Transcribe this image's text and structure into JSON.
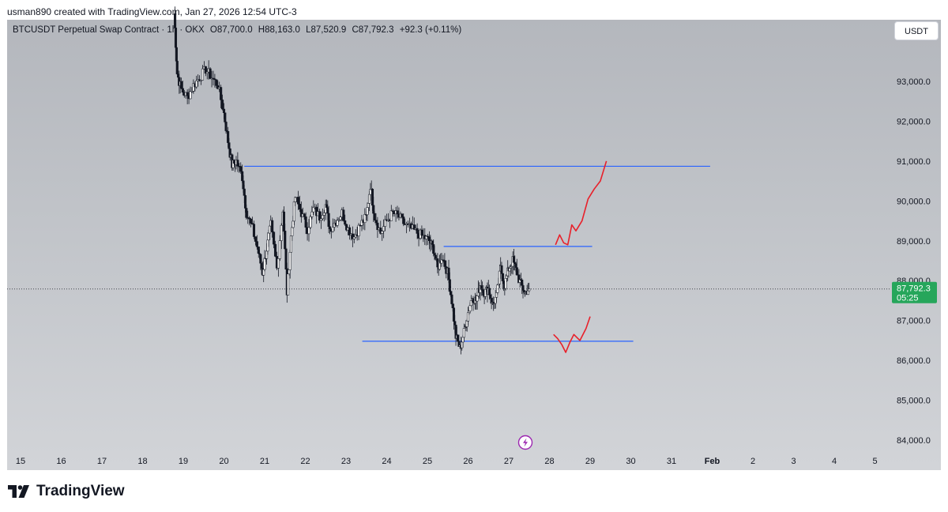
{
  "header": {
    "author_line": "usman890 created with TradingView.com, Jan 27, 2026 12:54 UTC-3"
  },
  "symbol": {
    "name": "BTCUSDT Perpetual Swap Contract · 1h · OKX",
    "open": "O87,700.0",
    "high": "H88,163.0",
    "low": "L87,520.9",
    "close": "C87,792.3",
    "change": "+92.3 (+0.11%)"
  },
  "currency_button": "USDT",
  "last_price": {
    "price": "87,792.3",
    "countdown": "05:25",
    "color": "#26a65b"
  },
  "flash_icon": "lightning-icon",
  "footer": {
    "brand": "TradingView"
  },
  "colors": {
    "candles": "#131722",
    "levels": "#2962ff",
    "projection": "#e8202a"
  },
  "chart_data": {
    "type": "candlestick",
    "title": "",
    "ylim": [
      83600,
      94800
    ],
    "y_ticks": [
      84000,
      85000,
      86000,
      87000,
      88000,
      89000,
      90000,
      91000,
      92000,
      93000
    ],
    "y_tick_labels": [
      "84,000.0",
      "85,000.0",
      "86,000.0",
      "87,000.0",
      "88,000.0",
      "89,000.0",
      "90,000.0",
      "91,000.0",
      "92,000.0",
      "93,000.0"
    ],
    "x_axis": [
      "15",
      "16",
      "17",
      "18",
      "19",
      "20",
      "21",
      "22",
      "23",
      "24",
      "25",
      "26",
      "27",
      "28",
      "29",
      "30",
      "31",
      "Feb",
      "2",
      "3",
      "4",
      "5"
    ],
    "x_bold": "Feb",
    "price_path": [
      [
        18.78,
        94700
      ],
      [
        18.85,
        93200
      ],
      [
        18.95,
        92800
      ],
      [
        19.1,
        92600
      ],
      [
        19.25,
        92900
      ],
      [
        19.4,
        93100
      ],
      [
        19.55,
        93300
      ],
      [
        19.7,
        93100
      ],
      [
        19.85,
        92900
      ],
      [
        20.0,
        92200
      ],
      [
        20.1,
        91500
      ],
      [
        20.2,
        90900
      ],
      [
        20.3,
        91000
      ],
      [
        20.45,
        90600
      ],
      [
        20.55,
        89700
      ],
      [
        20.7,
        89300
      ],
      [
        20.85,
        88700
      ],
      [
        20.95,
        88200
      ],
      [
        21.05,
        88800
      ],
      [
        21.15,
        89400
      ],
      [
        21.3,
        88300
      ],
      [
        21.45,
        89800
      ],
      [
        21.55,
        87700
      ],
      [
        21.65,
        89100
      ],
      [
        21.75,
        90100
      ],
      [
        21.9,
        89700
      ],
      [
        22.05,
        89300
      ],
      [
        22.2,
        89800
      ],
      [
        22.35,
        89600
      ],
      [
        22.5,
        89900
      ],
      [
        22.6,
        89300
      ],
      [
        22.75,
        89500
      ],
      [
        22.9,
        89700
      ],
      [
        23.05,
        89300
      ],
      [
        23.2,
        89100
      ],
      [
        23.35,
        89400
      ],
      [
        23.5,
        89600
      ],
      [
        23.6,
        90400
      ],
      [
        23.7,
        89600
      ],
      [
        23.85,
        89200
      ],
      [
        24.0,
        89500
      ],
      [
        24.15,
        89700
      ],
      [
        24.3,
        89600
      ],
      [
        24.45,
        89400
      ],
      [
        24.6,
        89300
      ],
      [
        24.75,
        89200
      ],
      [
        24.9,
        89100
      ],
      [
        25.05,
        89000
      ],
      [
        25.15,
        88800
      ],
      [
        25.25,
        88300
      ],
      [
        25.35,
        88600
      ],
      [
        25.5,
        88200
      ],
      [
        25.6,
        87500
      ],
      [
        25.7,
        86600
      ],
      [
        25.8,
        86300
      ],
      [
        25.9,
        86700
      ],
      [
        26.0,
        87200
      ],
      [
        26.1,
        87600
      ],
      [
        26.2,
        87500
      ],
      [
        26.3,
        87900
      ],
      [
        26.4,
        87700
      ],
      [
        26.5,
        87800
      ],
      [
        26.6,
        87400
      ],
      [
        26.7,
        87600
      ],
      [
        26.8,
        88300
      ],
      [
        26.9,
        87900
      ],
      [
        27.0,
        88300
      ],
      [
        27.1,
        88500
      ],
      [
        27.2,
        88200
      ],
      [
        27.3,
        87900
      ],
      [
        27.4,
        87700
      ],
      [
        27.5,
        87800
      ]
    ],
    "levels": [
      {
        "price": 90870,
        "x_from": 20.5,
        "x_to": 31.95
      },
      {
        "price": 88860,
        "x_from": 25.4,
        "x_to": 29.05
      },
      {
        "price": 86480,
        "x_from": 23.4,
        "x_to": 30.06
      }
    ],
    "projections": [
      [
        [
          28.15,
          88900
        ],
        [
          28.25,
          89150
        ],
        [
          28.35,
          88950
        ],
        [
          28.45,
          88900
        ],
        [
          28.55,
          89400
        ],
        [
          28.65,
          89250
        ],
        [
          28.8,
          89500
        ],
        [
          28.95,
          90050
        ],
        [
          29.1,
          90300
        ],
        [
          29.25,
          90500
        ],
        [
          29.4,
          91000
        ]
      ],
      [
        [
          28.1,
          86650
        ],
        [
          28.2,
          86550
        ],
        [
          28.3,
          86400
        ],
        [
          28.4,
          86200
        ],
        [
          28.5,
          86450
        ],
        [
          28.6,
          86650
        ],
        [
          28.75,
          86500
        ],
        [
          28.9,
          86800
        ],
        [
          29.0,
          87100
        ]
      ]
    ]
  }
}
